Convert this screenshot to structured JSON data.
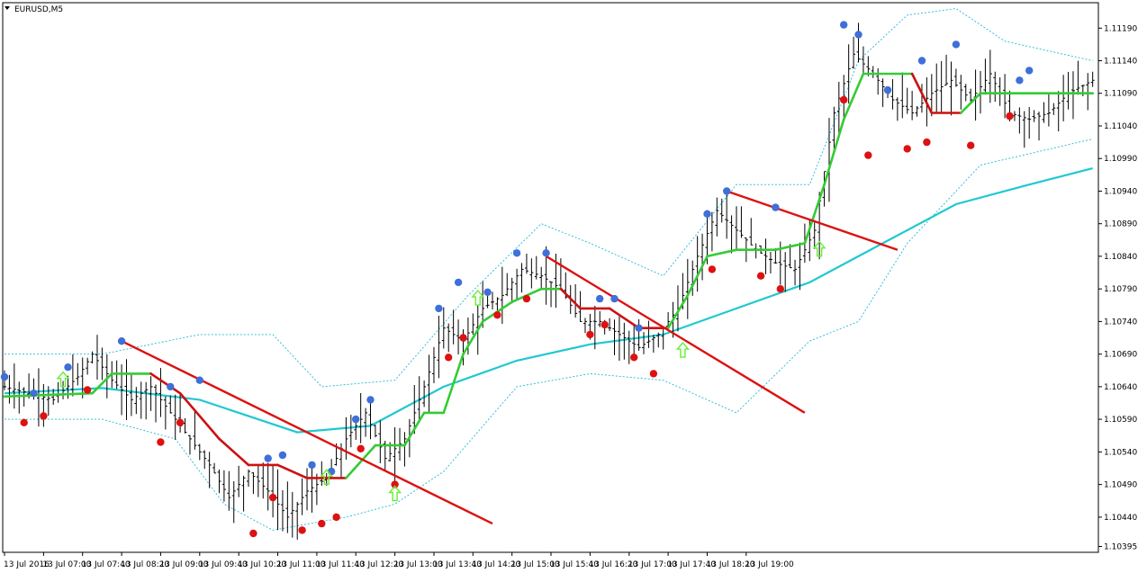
{
  "window": {
    "title": "EURUSD,M5"
  },
  "colors": {
    "background": "#ffffff",
    "bar": "#000000",
    "band": "#22b8d8",
    "ma": "#20c8d0",
    "trail_up": "#33cc33",
    "trail_down": "#cc1111",
    "trendline": "#dd1111",
    "marker_top": "#3f6fd8",
    "marker_bottom": "#dd1111",
    "arrow": "#66ee33"
  },
  "chart_data": {
    "type": "candlestick",
    "symbol": "EURUSD",
    "timeframe": "M5",
    "ylim": [
      1.10386,
      1.11229
    ],
    "y_ticks": [
      "1.11190",
      "1.11140",
      "1.11090",
      "1.11040",
      "1.10990",
      "1.10940",
      "1.10890",
      "1.10840",
      "1.10790",
      "1.10740",
      "1.10690",
      "1.10640",
      "1.10590",
      "1.10540",
      "1.10490",
      "1.10440",
      "1.10395"
    ],
    "x_ticks": [
      "13 Jul 2016",
      "13 Jul 07:00",
      "13 Jul 07:40",
      "13 Jul 08:20",
      "13 Jul 09:00",
      "13 Jul 09:40",
      "13 Jul 10:20",
      "13 Jul 11:00",
      "13 Jul 11:40",
      "13 Jul 12:20",
      "13 Jul 13:00",
      "13 Jul 13:40",
      "13 Jul 14:20",
      "13 Jul 15:00",
      "13 Jul 15:40",
      "13 Jul 16:20",
      "13 Jul 17:00",
      "13 Jul 17:40",
      "13 Jul 18:20",
      "13 Jul 19:00"
    ],
    "close_path": [
      [
        0,
        1.1064
      ],
      [
        5,
        1.1063
      ],
      [
        10,
        1.1062
      ],
      [
        15,
        1.10655
      ],
      [
        18,
        1.1069
      ],
      [
        22,
        1.1065
      ],
      [
        26,
        1.1062
      ],
      [
        30,
        1.1064
      ],
      [
        34,
        1.106
      ],
      [
        38,
        1.1056
      ],
      [
        42,
        1.1052
      ],
      [
        46,
        1.1047
      ],
      [
        50,
        1.1051
      ],
      [
        54,
        1.1048
      ],
      [
        58,
        1.1044
      ],
      [
        62,
        1.1048
      ],
      [
        66,
        1.105
      ],
      [
        70,
        1.1056
      ],
      [
        74,
        1.106
      ],
      [
        78,
        1.1053
      ],
      [
        82,
        1.1056
      ],
      [
        86,
        1.1064
      ],
      [
        90,
        1.1073
      ],
      [
        94,
        1.1071
      ],
      [
        98,
        1.1076
      ],
      [
        102,
        1.1078
      ],
      [
        106,
        1.1082
      ],
      [
        110,
        1.1081
      ],
      [
        114,
        1.1079
      ],
      [
        118,
        1.1074
      ],
      [
        122,
        1.1074
      ],
      [
        126,
        1.1072
      ],
      [
        130,
        1.107
      ],
      [
        134,
        1.1072
      ],
      [
        138,
        1.1076
      ],
      [
        142,
        1.1084
      ],
      [
        146,
        1.1091
      ],
      [
        150,
        1.1088
      ],
      [
        154,
        1.1085
      ],
      [
        158,
        1.1083
      ],
      [
        162,
        1.1082
      ],
      [
        166,
        1.1088
      ],
      [
        170,
        1.1106
      ],
      [
        174,
        1.1115
      ],
      [
        178,
        1.1112
      ],
      [
        182,
        1.1108
      ],
      [
        186,
        1.1106
      ],
      [
        190,
        1.1109
      ],
      [
        194,
        1.1111
      ],
      [
        198,
        1.1108
      ],
      [
        202,
        1.1112
      ],
      [
        206,
        1.1106
      ],
      [
        210,
        1.1105
      ],
      [
        214,
        1.1106
      ],
      [
        218,
        1.1109
      ],
      [
        223,
        1.1111
      ]
    ],
    "series": [
      {
        "type": "line",
        "role": "moving-average",
        "points": [
          [
            0,
            1.1063
          ],
          [
            20,
            1.10638
          ],
          [
            40,
            1.1062
          ],
          [
            60,
            1.1057
          ],
          [
            75,
            1.1058
          ],
          [
            90,
            1.1064
          ],
          [
            105,
            1.1068
          ],
          [
            120,
            1.10705
          ],
          [
            135,
            1.1072
          ],
          [
            150,
            1.1076
          ],
          [
            165,
            1.108
          ],
          [
            180,
            1.1086
          ],
          [
            195,
            1.1092
          ],
          [
            210,
            1.1095
          ],
          [
            223,
            1.10975
          ]
        ]
      },
      {
        "type": "line",
        "role": "band-upper",
        "points": [
          [
            0,
            1.1069
          ],
          [
            20,
            1.1069
          ],
          [
            40,
            1.1072
          ],
          [
            55,
            1.1072
          ],
          [
            65,
            1.1064
          ],
          [
            80,
            1.1065
          ],
          [
            95,
            1.1078
          ],
          [
            110,
            1.1089
          ],
          [
            120,
            1.1086
          ],
          [
            135,
            1.1081
          ],
          [
            150,
            1.1095
          ],
          [
            165,
            1.1095
          ],
          [
            175,
            1.1114
          ],
          [
            185,
            1.1121
          ],
          [
            195,
            1.1122
          ],
          [
            205,
            1.1117
          ],
          [
            223,
            1.1114
          ]
        ]
      },
      {
        "type": "line",
        "role": "band-lower",
        "points": [
          [
            0,
            1.1059
          ],
          [
            20,
            1.1059
          ],
          [
            35,
            1.1056
          ],
          [
            45,
            1.1046
          ],
          [
            55,
            1.1042
          ],
          [
            70,
            1.1044
          ],
          [
            80,
            1.1046
          ],
          [
            90,
            1.1051
          ],
          [
            105,
            1.1064
          ],
          [
            120,
            1.1066
          ],
          [
            135,
            1.1065
          ],
          [
            150,
            1.106
          ],
          [
            165,
            1.1071
          ],
          [
            175,
            1.1074
          ],
          [
            185,
            1.1086
          ],
          [
            200,
            1.1098
          ],
          [
            223,
            1.1102
          ]
        ]
      },
      {
        "type": "line",
        "role": "trailing-stop",
        "points": [
          [
            0,
            1.10625
          ],
          [
            18,
            1.1063
          ],
          [
            22,
            1.1066
          ],
          [
            30,
            1.1066
          ],
          [
            36,
            1.1063
          ],
          [
            44,
            1.1056
          ],
          [
            50,
            1.1052
          ],
          [
            56,
            1.1052
          ],
          [
            62,
            1.105
          ],
          [
            70,
            1.105
          ],
          [
            76,
            1.1055
          ],
          [
            82,
            1.1055
          ],
          [
            86,
            1.106
          ],
          [
            90,
            1.106
          ],
          [
            94,
            1.1069
          ],
          [
            98,
            1.1074
          ],
          [
            104,
            1.1077
          ],
          [
            110,
            1.1079
          ],
          [
            114,
            1.1079
          ],
          [
            118,
            1.1076
          ],
          [
            124,
            1.1076
          ],
          [
            130,
            1.1073
          ],
          [
            136,
            1.1073
          ],
          [
            140,
            1.1078
          ],
          [
            144,
            1.1084
          ],
          [
            150,
            1.1085
          ],
          [
            158,
            1.1085
          ],
          [
            164,
            1.1086
          ],
          [
            168,
            1.1095
          ],
          [
            172,
            1.1105
          ],
          [
            176,
            1.1112
          ],
          [
            186,
            1.1112
          ],
          [
            190,
            1.1106
          ],
          [
            196,
            1.1106
          ],
          [
            200,
            1.1109
          ],
          [
            210,
            1.1109
          ],
          [
            223,
            1.1109
          ]
        ]
      },
      {
        "type": "line",
        "role": "trendline",
        "points": [
          [
            24,
            1.1071
          ],
          [
            100,
            1.1043
          ]
        ]
      },
      {
        "type": "line",
        "role": "trendline",
        "points": [
          [
            111,
            1.1084
          ],
          [
            164,
            1.106
          ]
        ]
      },
      {
        "type": "line",
        "role": "trendline",
        "points": [
          [
            148,
            1.1094
          ],
          [
            183,
            1.1085
          ]
        ]
      }
    ],
    "markers_top": [
      [
        0,
        1.10655
      ],
      [
        6,
        1.1063
      ],
      [
        13,
        1.1067
      ],
      [
        24,
        1.1071
      ],
      [
        34,
        1.1064
      ],
      [
        40,
        1.1065
      ],
      [
        54,
        1.1053
      ],
      [
        57,
        1.10535
      ],
      [
        63,
        1.1052
      ],
      [
        67,
        1.1051
      ],
      [
        72,
        1.1059
      ],
      [
        75,
        1.1062
      ],
      [
        89,
        1.1076
      ],
      [
        93,
        1.108
      ],
      [
        99,
        1.10785
      ],
      [
        105,
        1.10845
      ],
      [
        111,
        1.10845
      ],
      [
        122,
        1.10775
      ],
      [
        125,
        1.10775
      ],
      [
        130,
        1.1073
      ],
      [
        144,
        1.10905
      ],
      [
        148,
        1.1094
      ],
      [
        158,
        1.10915
      ],
      [
        172,
        1.11195
      ],
      [
        175,
        1.1118
      ],
      [
        181,
        1.11095
      ],
      [
        188,
        1.1114
      ],
      [
        195,
        1.11165
      ],
      [
        208,
        1.1111
      ],
      [
        210,
        1.11125
      ]
    ],
    "markers_bottom": [
      [
        4,
        1.10585
      ],
      [
        8,
        1.10595
      ],
      [
        17,
        1.10635
      ],
      [
        32,
        1.10555
      ],
      [
        36,
        1.10585
      ],
      [
        51,
        1.10415
      ],
      [
        55,
        1.1047
      ],
      [
        61,
        1.1042
      ],
      [
        65,
        1.1043
      ],
      [
        68,
        1.1044
      ],
      [
        73,
        1.10545
      ],
      [
        80,
        1.1049
      ],
      [
        91,
        1.10685
      ],
      [
        94,
        1.10715
      ],
      [
        101,
        1.1075
      ],
      [
        107,
        1.10775
      ],
      [
        120,
        1.1072
      ],
      [
        123,
        1.10735
      ],
      [
        129,
        1.10685
      ],
      [
        133,
        1.1066
      ],
      [
        145,
        1.1082
      ],
      [
        155,
        1.1081
      ],
      [
        159,
        1.1079
      ],
      [
        172,
        1.1108
      ],
      [
        177,
        1.10995
      ],
      [
        185,
        1.11005
      ],
      [
        189,
        1.11015
      ],
      [
        198,
        1.1101
      ],
      [
        206,
        1.11055
      ]
    ],
    "arrows_up": [
      [
        12,
        1.1065
      ],
      [
        66,
        1.105
      ],
      [
        80,
        1.10475
      ],
      [
        97,
        1.10775
      ],
      [
        139,
        1.10695
      ],
      [
        167,
        1.1085
      ]
    ]
  }
}
